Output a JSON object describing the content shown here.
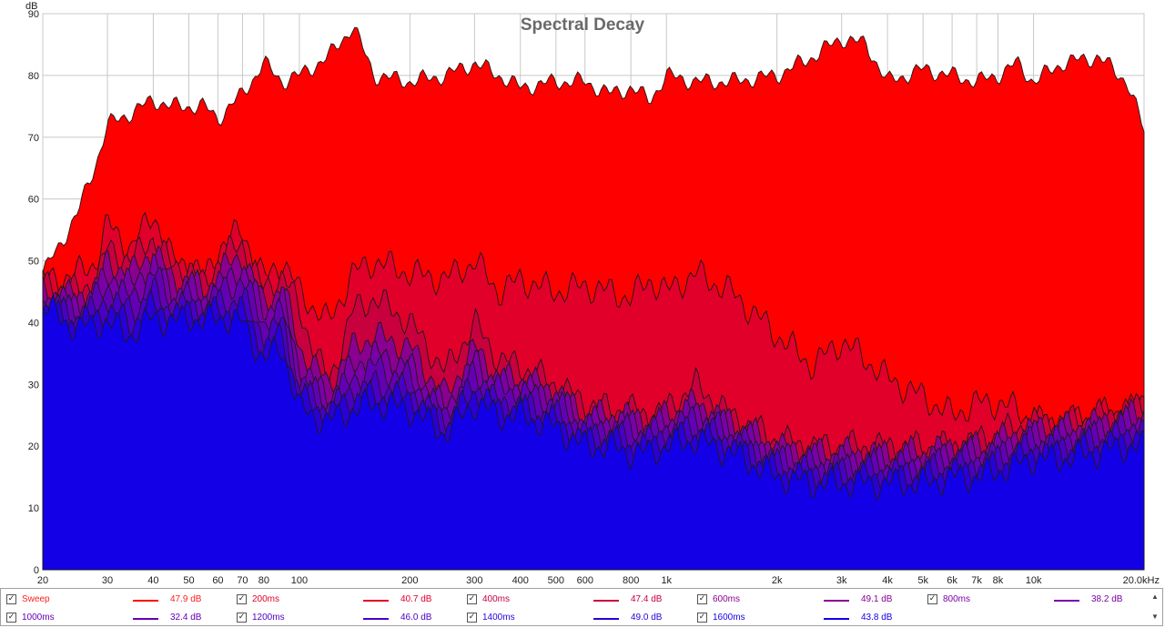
{
  "chart_data": {
    "type": "area",
    "title": "Spectral Decay",
    "ylabel": "dB",
    "xunit": "kHz",
    "x_scale": "log",
    "xlim": [
      20,
      20000
    ],
    "ylim": [
      0,
      90
    ],
    "grid": true,
    "y_ticks": [
      "90",
      "80",
      "70",
      "60",
      "50",
      "40",
      "30",
      "20",
      "10",
      "0"
    ],
    "x_ticks": [
      {
        "v": 20,
        "t": "20"
      },
      {
        "v": 30,
        "t": "30"
      },
      {
        "v": 40,
        "t": "40"
      },
      {
        "v": 50,
        "t": "50"
      },
      {
        "v": 60,
        "t": "60"
      },
      {
        "v": 70,
        "t": "70"
      },
      {
        "v": 80,
        "t": "80"
      },
      {
        "v": 100,
        "t": "100"
      },
      {
        "v": 200,
        "t": "200"
      },
      {
        "v": 300,
        "t": "300"
      },
      {
        "v": 400,
        "t": "400"
      },
      {
        "v": 500,
        "t": "500"
      },
      {
        "v": 600,
        "t": "600"
      },
      {
        "v": 800,
        "t": "800"
      },
      {
        "v": 1000,
        "t": "1k"
      },
      {
        "v": 2000,
        "t": "2k"
      },
      {
        "v": 3000,
        "t": "3k"
      },
      {
        "v": 4000,
        "t": "4k"
      },
      {
        "v": 5000,
        "t": "5k"
      },
      {
        "v": 6000,
        "t": "6k"
      },
      {
        "v": 7000,
        "t": "7k"
      },
      {
        "v": 8000,
        "t": "8k"
      },
      {
        "v": 10000,
        "t": "10k"
      },
      {
        "v": 20000,
        "t": "20.0kHz"
      }
    ],
    "series": [
      {
        "name": "Sweep",
        "color": "#ff0000",
        "value_label": "47.9 dB",
        "x": [
          20,
          22,
          25,
          28,
          30,
          35,
          40,
          45,
          50,
          55,
          60,
          70,
          80,
          90,
          100,
          120,
          140,
          160,
          200,
          250,
          300,
          350,
          400,
          500,
          600,
          700,
          800,
          900,
          1000,
          1200,
          1500,
          2000,
          2500,
          3000,
          3500,
          4000,
          5000,
          6000,
          7000,
          8000,
          9000,
          10000,
          12000,
          15000,
          18000,
          20000
        ],
        "y": [
          48,
          52,
          58,
          66,
          72,
          74,
          76,
          75,
          75,
          75,
          73,
          77,
          82,
          79,
          80,
          83,
          88,
          80,
          79,
          80,
          82,
          80,
          78,
          79,
          79,
          77,
          78,
          76,
          80,
          79,
          79,
          80,
          83,
          86,
          85,
          79,
          81,
          80,
          79,
          80,
          82,
          79,
          82,
          83,
          79,
          71
        ]
      },
      {
        "name": "200ms",
        "color": "#e0002a",
        "value_label": "40.7 dB",
        "x": [
          20,
          22,
          25,
          28,
          30,
          35,
          40,
          45,
          50,
          55,
          60,
          70,
          80,
          90,
          100,
          120,
          140,
          160,
          200,
          250,
          300,
          350,
          400,
          500,
          600,
          700,
          800,
          900,
          1000,
          1200,
          1500,
          2000,
          2500,
          3000,
          3500,
          4000,
          5000,
          6000,
          7000,
          8000,
          9000,
          10000,
          12000,
          15000,
          18000,
          20000
        ],
        "y": [
          47,
          47,
          48,
          50,
          56,
          52,
          58,
          50,
          50,
          47,
          52,
          55,
          47,
          50,
          45,
          40,
          48,
          50,
          48,
          47,
          50,
          45,
          47,
          45,
          46,
          45,
          44,
          47,
          45,
          48,
          45,
          38,
          33,
          37,
          34,
          31,
          28,
          25,
          27,
          27,
          26,
          24,
          24,
          25,
          26,
          27
        ]
      },
      {
        "name": "400ms",
        "color": "#c8003e",
        "value_label": "47.4 dB",
        "x": [
          20,
          22,
          25,
          28,
          30,
          35,
          40,
          45,
          50,
          55,
          60,
          70,
          80,
          90,
          100,
          120,
          140,
          160,
          200,
          250,
          300,
          350,
          400,
          500,
          600,
          700,
          800,
          900,
          1000,
          1200,
          1500,
          2000,
          2500,
          3000,
          3500,
          4000,
          5000,
          6000,
          7000,
          8000,
          9000,
          10000,
          12000,
          15000,
          18000,
          20000
        ],
        "y": [
          46,
          46,
          45,
          47,
          52,
          50,
          54,
          49,
          49,
          46,
          50,
          53,
          45,
          48,
          42,
          30,
          42,
          44,
          40,
          32,
          40,
          34,
          33,
          30,
          27,
          26,
          26,
          25,
          26,
          30,
          25,
          21,
          20,
          20,
          20,
          20,
          20,
          20,
          21,
          22,
          23,
          24,
          24,
          25,
          26,
          27
        ]
      },
      {
        "name": "600ms",
        "color": "#8a0090",
        "value_label": "49.1 dB",
        "x": [
          20,
          22,
          25,
          28,
          30,
          35,
          40,
          45,
          50,
          55,
          60,
          70,
          80,
          90,
          100,
          120,
          140,
          160,
          200,
          250,
          300,
          350,
          400,
          500,
          600,
          700,
          800,
          900,
          1000,
          1200,
          1500,
          2000,
          2500,
          3000,
          3500,
          4000,
          5000,
          6000,
          7000,
          8000,
          9000,
          10000,
          12000,
          15000,
          18000,
          20000
        ],
        "y": [
          45,
          45,
          44,
          46,
          50,
          48,
          52,
          47,
          47,
          45,
          48,
          51,
          43,
          46,
          36,
          30,
          36,
          38,
          36,
          28,
          36,
          31,
          31,
          29,
          25,
          25,
          25,
          24,
          25,
          27,
          24,
          20,
          19,
          19,
          19,
          19,
          19,
          20,
          20,
          21,
          22,
          23,
          23,
          24,
          25,
          26
        ]
      },
      {
        "name": "800ms",
        "color": "#7a00a8",
        "value_label": "38.2 dB",
        "x": [
          20,
          22,
          25,
          28,
          30,
          35,
          40,
          45,
          50,
          55,
          60,
          70,
          80,
          90,
          100,
          120,
          140,
          160,
          200,
          250,
          300,
          350,
          400,
          500,
          600,
          700,
          800,
          900,
          1000,
          1200,
          1500,
          2000,
          2500,
          3000,
          3500,
          4000,
          5000,
          6000,
          7000,
          8000,
          9000,
          10000,
          12000,
          15000,
          18000,
          20000
        ],
        "y": [
          44,
          44,
          43,
          45,
          48,
          46,
          50,
          45,
          46,
          44,
          46,
          49,
          42,
          44,
          33,
          28,
          33,
          35,
          33,
          26,
          34,
          30,
          30,
          28,
          24,
          24,
          24,
          23,
          24,
          26,
          23,
          19,
          18,
          18,
          18,
          18,
          18,
          19,
          19,
          20,
          21,
          22,
          22,
          23,
          24,
          25
        ]
      },
      {
        "name": "1000ms",
        "color": "#6400b4",
        "value_label": "32.4 dB",
        "x": [
          20,
          22,
          25,
          28,
          30,
          35,
          40,
          45,
          50,
          55,
          60,
          70,
          80,
          90,
          100,
          120,
          140,
          160,
          200,
          250,
          300,
          350,
          400,
          500,
          600,
          700,
          800,
          900,
          1000,
          1200,
          1500,
          2000,
          2500,
          3000,
          3500,
          4000,
          5000,
          6000,
          7000,
          8000,
          9000,
          10000,
          12000,
          15000,
          18000,
          20000
        ],
        "y": [
          43,
          43,
          42,
          44,
          46,
          44,
          48,
          44,
          44,
          43,
          45,
          47,
          40,
          42,
          31,
          27,
          31,
          33,
          31,
          25,
          32,
          29,
          29,
          27,
          23,
          23,
          23,
          22,
          23,
          25,
          22,
          18,
          17,
          17,
          17,
          17,
          17,
          18,
          18,
          19,
          20,
          21,
          21,
          22,
          23,
          24
        ]
      },
      {
        "name": "1200ms",
        "color": "#4a00c4",
        "value_label": "46.0 dB",
        "x": [
          20,
          22,
          25,
          28,
          30,
          35,
          40,
          45,
          50,
          55,
          60,
          70,
          80,
          90,
          100,
          120,
          140,
          160,
          200,
          250,
          300,
          350,
          400,
          500,
          600,
          700,
          800,
          900,
          1000,
          1200,
          1500,
          2000,
          2500,
          3000,
          3500,
          4000,
          5000,
          6000,
          7000,
          8000,
          9000,
          10000,
          12000,
          15000,
          18000,
          20000
        ],
        "y": [
          43,
          42,
          41,
          42,
          44,
          42,
          45,
          42,
          43,
          42,
          43,
          44,
          38,
          40,
          29,
          26,
          29,
          30,
          29,
          24,
          30,
          27,
          27,
          25,
          22,
          22,
          21,
          21,
          22,
          23,
          21,
          17,
          16,
          16,
          16,
          16,
          16,
          17,
          17,
          18,
          19,
          20,
          20,
          21,
          22,
          23
        ]
      },
      {
        "name": "1400ms",
        "color": "#2a00d6",
        "value_label": "49.0 dB",
        "x": [
          20,
          22,
          25,
          28,
          30,
          35,
          40,
          45,
          50,
          55,
          60,
          70,
          80,
          90,
          100,
          120,
          140,
          160,
          200,
          250,
          300,
          350,
          400,
          500,
          600,
          700,
          800,
          900,
          1000,
          1200,
          1500,
          2000,
          2500,
          3000,
          3500,
          4000,
          5000,
          6000,
          7000,
          8000,
          9000,
          10000,
          12000,
          15000,
          18000,
          20000
        ],
        "y": [
          43,
          41,
          40,
          41,
          42,
          40,
          43,
          41,
          42,
          41,
          42,
          42,
          36,
          38,
          28,
          25,
          28,
          28,
          28,
          23,
          29,
          26,
          26,
          24,
          21,
          21,
          20,
          20,
          21,
          22,
          20,
          16,
          15,
          15,
          15,
          15,
          15,
          16,
          16,
          17,
          18,
          19,
          19,
          20,
          21,
          22
        ]
      },
      {
        "name": "1600ms",
        "color": "#1400e6",
        "value_label": "43.8 dB",
        "x": [
          20,
          22,
          25,
          28,
          30,
          35,
          40,
          45,
          50,
          55,
          60,
          70,
          80,
          90,
          100,
          120,
          140,
          160,
          200,
          250,
          300,
          350,
          400,
          500,
          600,
          700,
          800,
          900,
          1000,
          1200,
          1500,
          2000,
          2500,
          3000,
          3500,
          4000,
          5000,
          6000,
          7000,
          8000,
          9000,
          10000,
          12000,
          15000,
          18000,
          20000
        ],
        "y": [
          43,
          41,
          39,
          40,
          40,
          38,
          41,
          40,
          41,
          40,
          41,
          40,
          34,
          36,
          26,
          24,
          26,
          27,
          26,
          22,
          27,
          25,
          25,
          23,
          20,
          20,
          19,
          19,
          20,
          21,
          19,
          15,
          14,
          14,
          14,
          14,
          14,
          15,
          15,
          16,
          17,
          18,
          18,
          19,
          20,
          20
        ]
      }
    ]
  }
}
